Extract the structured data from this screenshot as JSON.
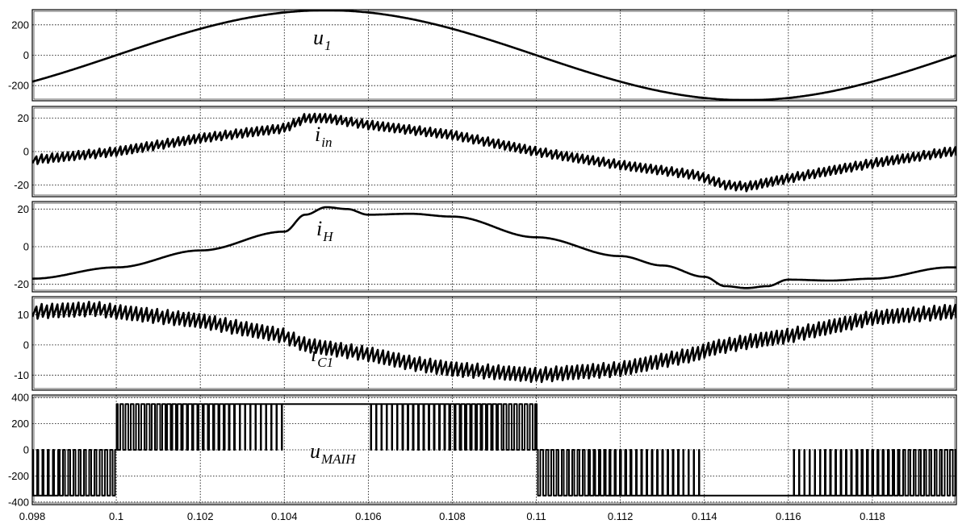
{
  "chart_data": {
    "type": "line",
    "x_ticks": [
      "0.098",
      "0.1",
      "0.102",
      "0.104",
      "0.106",
      "0.108",
      "0.11",
      "0.112",
      "0.114",
      "0.116",
      "0.118"
    ],
    "xlim": [
      0.098,
      0.12
    ],
    "grid": true,
    "panels": [
      {
        "label": "u",
        "label_sub": "1",
        "ylim": [
          -300,
          300
        ],
        "y_ticks": [
          200,
          0,
          -200
        ],
        "series": {
          "kind": "sine",
          "amplitude": 296,
          "frequency_hz": 50,
          "phase_zero_t": 0.1
        }
      },
      {
        "label": "i",
        "label_sub": "in",
        "ylim": [
          -27,
          27
        ],
        "y_ticks": [
          20,
          0,
          -20
        ],
        "series": {
          "kind": "ripple",
          "base_x": [
            0.098,
            0.1,
            0.102,
            0.104,
            0.1045,
            0.105,
            0.106,
            0.108,
            0.11,
            0.112,
            0.1138,
            0.1145,
            0.115,
            0.116,
            0.118,
            0.11985
          ],
          "base_y": [
            -5,
            0,
            8,
            14,
            20,
            20,
            16,
            10,
            0,
            -8,
            -14,
            -20,
            -21,
            -16,
            -7,
            0
          ],
          "ripple_amp": 2.5,
          "switching_hz": 8000
        }
      },
      {
        "label": "i",
        "label_sub": "H",
        "ylim": [
          -24,
          24
        ],
        "y_ticks": [
          20,
          0,
          -20
        ],
        "series": {
          "kind": "smooth",
          "base_x": [
            0.098,
            0.1,
            0.102,
            0.104,
            0.1045,
            0.105,
            0.1055,
            0.106,
            0.107,
            0.108,
            0.11,
            0.112,
            0.113,
            0.114,
            0.1145,
            0.115,
            0.1155,
            0.116,
            0.117,
            0.118,
            0.11985
          ],
          "base_y": [
            -17,
            -11,
            -2,
            8,
            17,
            21,
            20,
            17,
            17.5,
            16,
            5,
            -5,
            -10,
            -16,
            -21,
            -22,
            -21,
            -17.5,
            -18,
            -17,
            -11
          ]
        }
      },
      {
        "label": "i",
        "label_sub": "C1",
        "ylim": [
          -15,
          16
        ],
        "y_ticks": [
          10,
          0,
          -10
        ],
        "series": {
          "kind": "ripple",
          "base_x": [
            0.098,
            0.0995,
            0.1,
            0.102,
            0.104,
            0.1045,
            0.105,
            0.106,
            0.107,
            0.108,
            0.109,
            0.11,
            0.112,
            0.1138,
            0.1142,
            0.115,
            0.116,
            0.118,
            0.11985
          ],
          "base_y": [
            11,
            12,
            11,
            8,
            3,
            0,
            -1,
            -3,
            -6,
            -8,
            -9,
            -10,
            -8,
            -3,
            -1,
            1,
            3,
            9,
            11
          ],
          "ripple_amp": 2.2,
          "switching_hz": 8000
        }
      },
      {
        "label": "u",
        "label_sub": "MAIH",
        "ylim": [
          -420,
          420
        ],
        "y_ticks": [
          400,
          200,
          0,
          -200,
          -400
        ],
        "series": {
          "kind": "pwm",
          "levels": [
            -350,
            0,
            350
          ],
          "dc_link": 350,
          "switching_hz": 8000
        }
      }
    ]
  }
}
